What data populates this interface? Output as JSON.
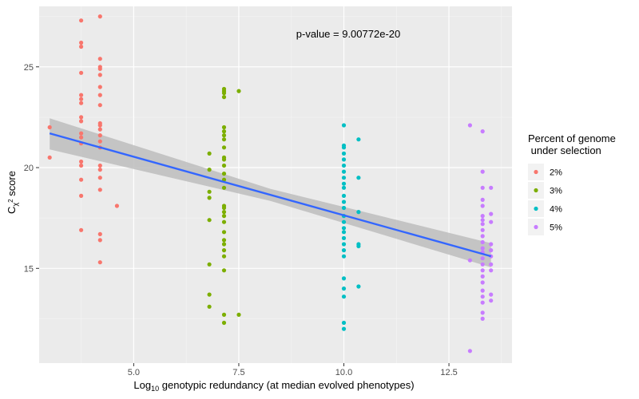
{
  "chart_data": {
    "type": "scatter",
    "title": "",
    "xlabel": {
      "prefix": "Log",
      "sub": "10",
      "rest": " genotypic redundancy (at median evolved phenotypes)"
    },
    "ylabel": {
      "prefix": "C",
      "sub": "χ",
      "sup": "2",
      "rest": " score"
    },
    "xlim": [
      2.75,
      14.0
    ],
    "ylim": [
      10.3,
      28.0
    ],
    "x_ticks": [
      5.0,
      7.5,
      10.0,
      12.5
    ],
    "x_tick_labels": [
      "5.0",
      "7.5",
      "10.0",
      "12.5"
    ],
    "y_ticks": [
      15,
      20,
      25
    ],
    "y_tick_labels": [
      "15",
      "20",
      "25"
    ],
    "grid": true,
    "annotation": "p-value =  9.00772e-20",
    "legend": {
      "title_lines": [
        "Percent of genome",
        " under selection"
      ],
      "placement": "right"
    },
    "series": [
      {
        "name": "2%",
        "color": "#F8766D",
        "points": [
          [
            3.0,
            20.5
          ],
          [
            3.0,
            22.0
          ],
          [
            3.75,
            16.9
          ],
          [
            3.75,
            18.6
          ],
          [
            3.75,
            19.4
          ],
          [
            3.75,
            20.1
          ],
          [
            3.75,
            20.3
          ],
          [
            3.75,
            21.2
          ],
          [
            3.75,
            21.5
          ],
          [
            3.75,
            21.7
          ],
          [
            3.75,
            22.3
          ],
          [
            3.75,
            22.5
          ],
          [
            3.75,
            23.2
          ],
          [
            3.75,
            23.4
          ],
          [
            3.75,
            23.6
          ],
          [
            3.75,
            24.7
          ],
          [
            3.75,
            26.0
          ],
          [
            3.75,
            26.2
          ],
          [
            3.75,
            27.3
          ],
          [
            4.2,
            15.3
          ],
          [
            4.2,
            16.4
          ],
          [
            4.2,
            16.7
          ],
          [
            4.2,
            18.9
          ],
          [
            4.2,
            19.5
          ],
          [
            4.2,
            19.9
          ],
          [
            4.2,
            20.1
          ],
          [
            4.2,
            21.0
          ],
          [
            4.2,
            21.3
          ],
          [
            4.2,
            21.6
          ],
          [
            4.2,
            21.9
          ],
          [
            4.2,
            22.1
          ],
          [
            4.2,
            22.2
          ],
          [
            4.2,
            23.1
          ],
          [
            4.2,
            23.6
          ],
          [
            4.2,
            24.0
          ],
          [
            4.2,
            24.6
          ],
          [
            4.2,
            24.9
          ],
          [
            4.2,
            25.0
          ],
          [
            4.2,
            25.4
          ],
          [
            4.2,
            27.5
          ],
          [
            4.6,
            18.1
          ]
        ]
      },
      {
        "name": "3%",
        "color": "#7CAE00",
        "points": [
          [
            6.8,
            13.1
          ],
          [
            6.8,
            13.7
          ],
          [
            6.8,
            15.2
          ],
          [
            6.8,
            17.4
          ],
          [
            6.8,
            18.5
          ],
          [
            6.8,
            18.8
          ],
          [
            6.8,
            19.9
          ],
          [
            6.8,
            20.7
          ],
          [
            7.15,
            12.3
          ],
          [
            7.15,
            12.7
          ],
          [
            7.15,
            14.9
          ],
          [
            7.15,
            15.6
          ],
          [
            7.15,
            15.9
          ],
          [
            7.15,
            16.2
          ],
          [
            7.15,
            16.4
          ],
          [
            7.15,
            16.8
          ],
          [
            7.15,
            17.3
          ],
          [
            7.15,
            17.6
          ],
          [
            7.15,
            17.8
          ],
          [
            7.15,
            18.0
          ],
          [
            7.15,
            18.1
          ],
          [
            7.15,
            19.0
          ],
          [
            7.15,
            19.4
          ],
          [
            7.15,
            19.7
          ],
          [
            7.15,
            20.1
          ],
          [
            7.15,
            20.4
          ],
          [
            7.15,
            20.5
          ],
          [
            7.15,
            21.0
          ],
          [
            7.15,
            21.4
          ],
          [
            7.15,
            21.6
          ],
          [
            7.15,
            21.8
          ],
          [
            7.15,
            22.0
          ],
          [
            7.15,
            23.5
          ],
          [
            7.15,
            23.7
          ],
          [
            7.15,
            23.8
          ],
          [
            7.15,
            23.9
          ],
          [
            7.5,
            12.7
          ],
          [
            7.5,
            23.8
          ]
        ]
      },
      {
        "name": "4%",
        "color": "#00BFC4",
        "points": [
          [
            10.0,
            12.0
          ],
          [
            10.0,
            12.3
          ],
          [
            10.0,
            13.6
          ],
          [
            10.0,
            14.0
          ],
          [
            10.0,
            14.5
          ],
          [
            10.0,
            15.6
          ],
          [
            10.0,
            15.9
          ],
          [
            10.0,
            16.2
          ],
          [
            10.0,
            16.5
          ],
          [
            10.0,
            16.8
          ],
          [
            10.0,
            17.0
          ],
          [
            10.0,
            17.3
          ],
          [
            10.0,
            17.6
          ],
          [
            10.0,
            18.0
          ],
          [
            10.0,
            18.3
          ],
          [
            10.0,
            18.6
          ],
          [
            10.0,
            19.0
          ],
          [
            10.0,
            19.2
          ],
          [
            10.0,
            19.5
          ],
          [
            10.0,
            19.8
          ],
          [
            10.0,
            20.1
          ],
          [
            10.0,
            20.4
          ],
          [
            10.0,
            20.7
          ],
          [
            10.0,
            21.0
          ],
          [
            10.0,
            21.1
          ],
          [
            10.0,
            22.1
          ],
          [
            10.35,
            14.1
          ],
          [
            10.35,
            16.1
          ],
          [
            10.35,
            16.2
          ],
          [
            10.35,
            17.8
          ],
          [
            10.35,
            19.5
          ],
          [
            10.35,
            21.4
          ]
        ]
      },
      {
        "name": "5%",
        "color": "#C77CFF",
        "points": [
          [
            13.0,
            10.9
          ],
          [
            13.0,
            15.4
          ],
          [
            13.0,
            22.1
          ],
          [
            13.3,
            12.5
          ],
          [
            13.3,
            12.8
          ],
          [
            13.3,
            13.3
          ],
          [
            13.3,
            13.6
          ],
          [
            13.3,
            13.9
          ],
          [
            13.3,
            14.3
          ],
          [
            13.3,
            14.6
          ],
          [
            13.3,
            14.9
          ],
          [
            13.3,
            15.2
          ],
          [
            13.3,
            15.5
          ],
          [
            13.3,
            15.8
          ],
          [
            13.3,
            16.0
          ],
          [
            13.3,
            16.3
          ],
          [
            13.3,
            16.6
          ],
          [
            13.3,
            16.9
          ],
          [
            13.3,
            17.2
          ],
          [
            13.3,
            17.4
          ],
          [
            13.3,
            17.6
          ],
          [
            13.3,
            18.1
          ],
          [
            13.3,
            18.4
          ],
          [
            13.3,
            19.0
          ],
          [
            13.3,
            19.8
          ],
          [
            13.3,
            21.8
          ],
          [
            13.5,
            13.4
          ],
          [
            13.5,
            13.7
          ],
          [
            13.5,
            14.9
          ],
          [
            13.5,
            15.2
          ],
          [
            13.5,
            15.6
          ],
          [
            13.5,
            15.9
          ],
          [
            13.5,
            16.2
          ],
          [
            13.5,
            17.3
          ],
          [
            13.5,
            17.7
          ],
          [
            13.5,
            19.0
          ]
        ]
      }
    ],
    "regression": {
      "color": "#3366FF",
      "band_color": "#BDBDBD",
      "x0": 3.0,
      "y0": 21.7,
      "x1": 13.5,
      "y1": 15.6,
      "band_lower": [
        20.9,
        15.05
      ],
      "band_upper": [
        22.45,
        16.25
      ],
      "band_mid_x": 8.25,
      "band_mid": [
        18.35,
        18.95
      ]
    }
  }
}
